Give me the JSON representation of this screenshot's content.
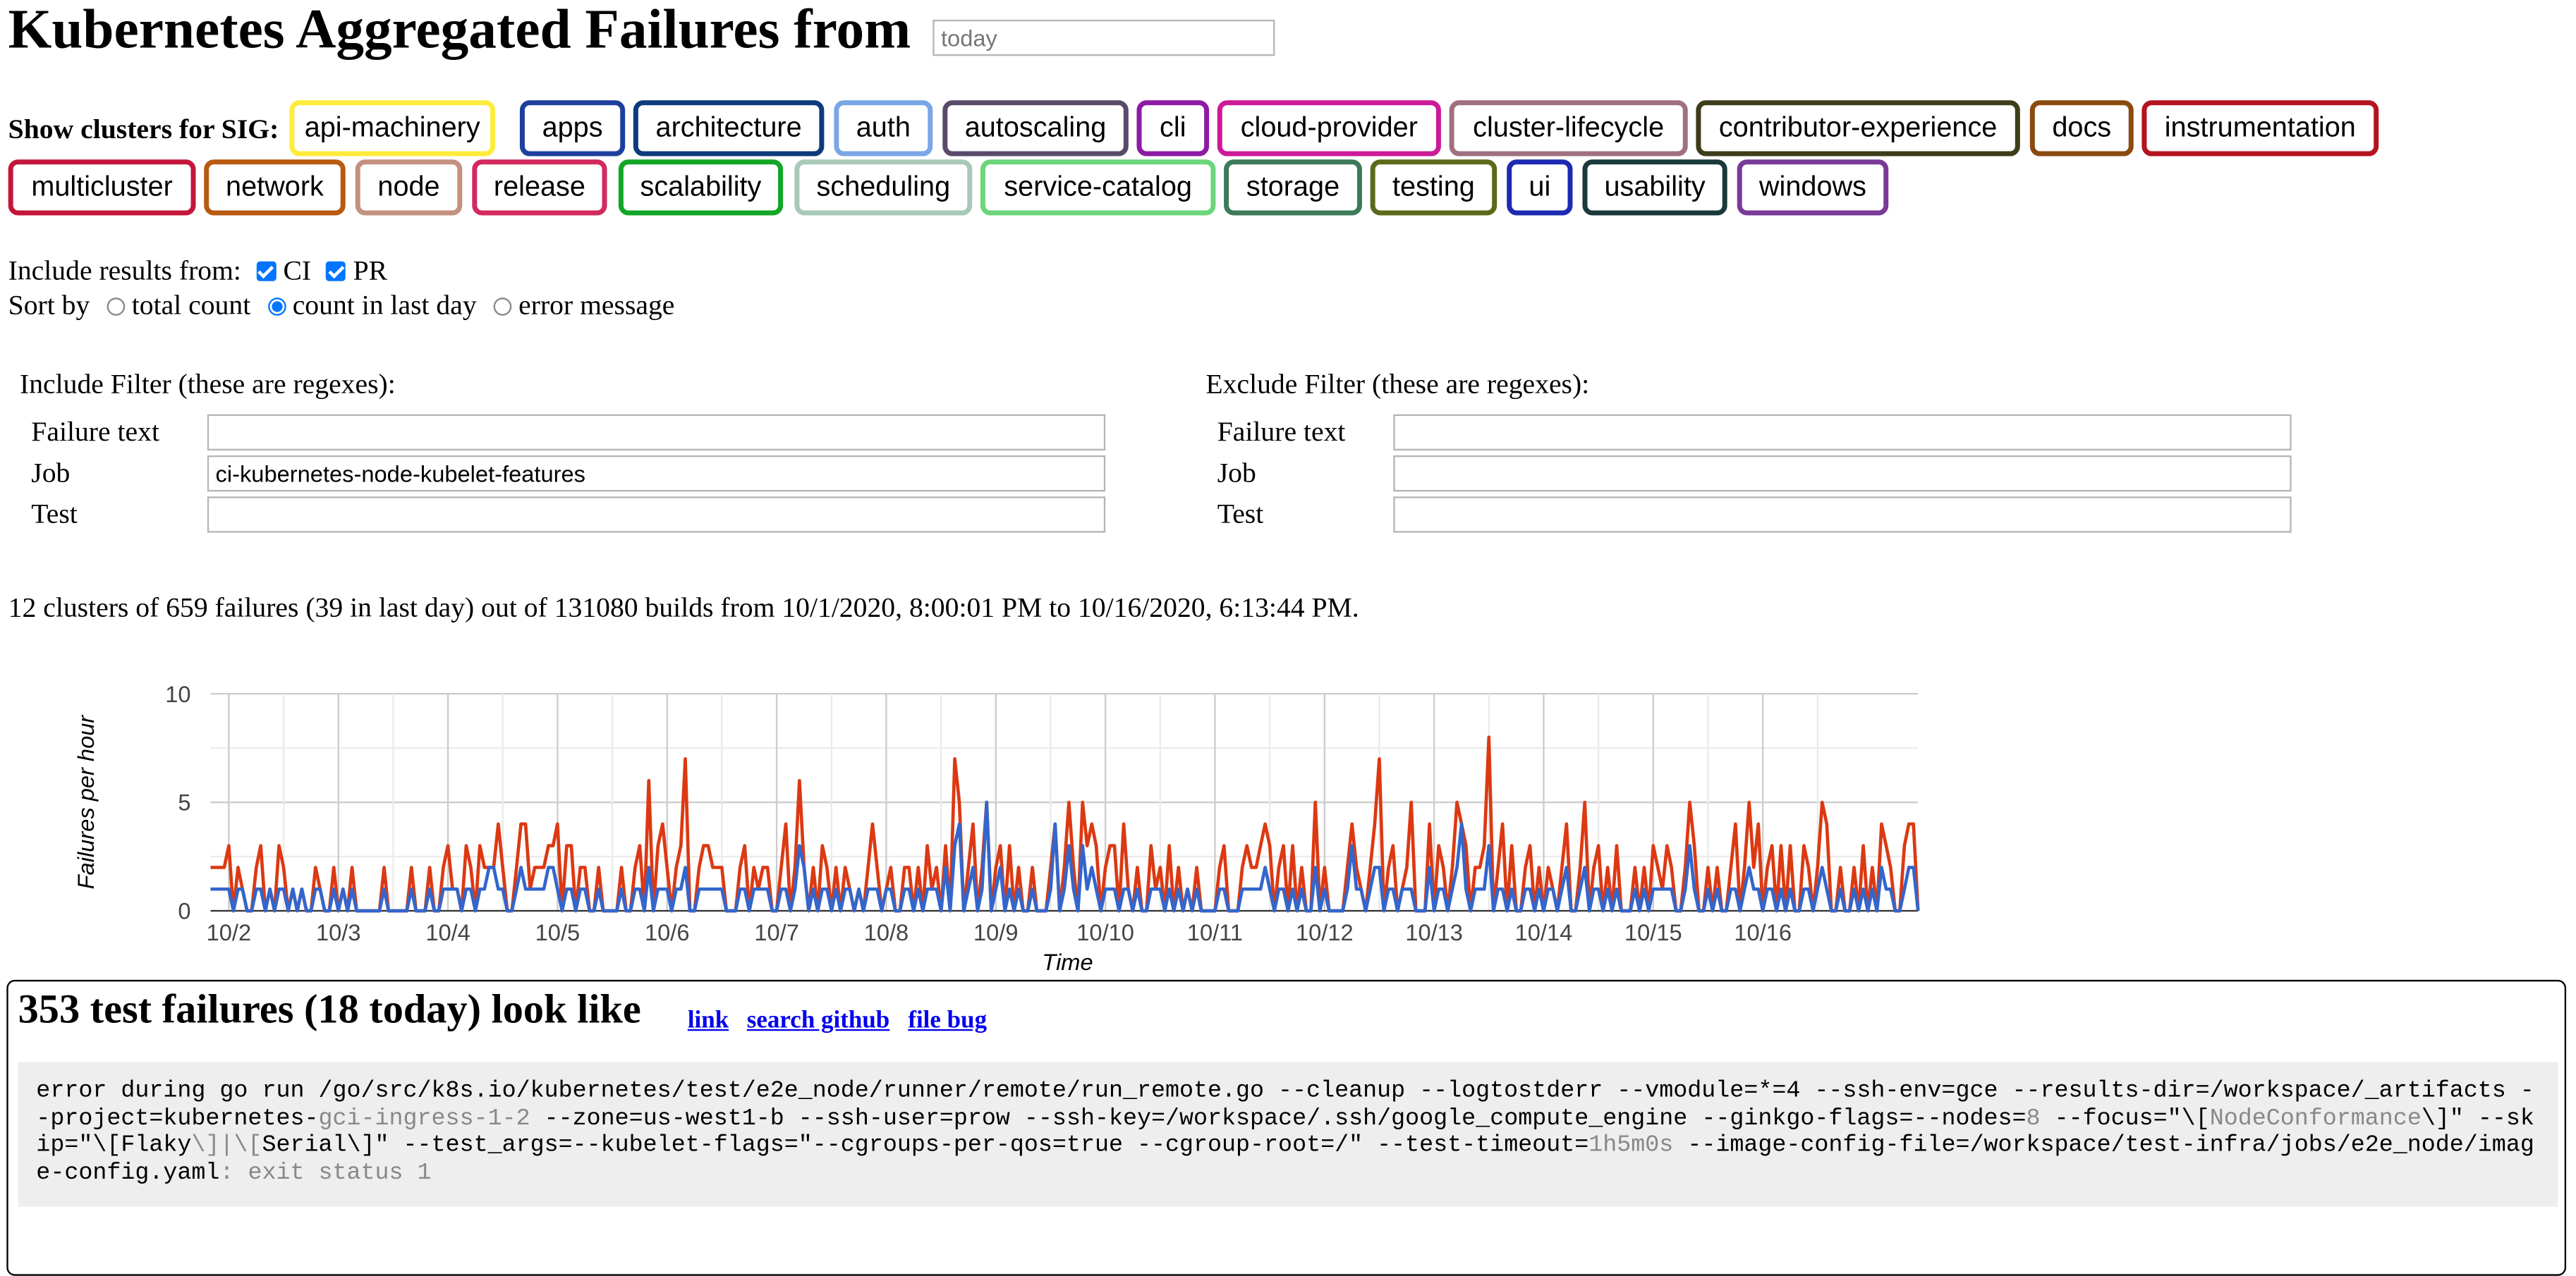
{
  "header": {
    "title": "Kubernetes Aggregated Failures from",
    "date_placeholder": "today"
  },
  "sigs": {
    "label": "Show clusters for SIG:",
    "buttons": [
      {
        "label": "api-machinery",
        "color": "#ffeb3b"
      },
      {
        "label": "apps",
        "color": "#1e3f9e"
      },
      {
        "label": "architecture",
        "color": "#0d3b7a"
      },
      {
        "label": "auth",
        "color": "#7aa6e6"
      },
      {
        "label": "autoscaling",
        "color": "#5a4a6a"
      },
      {
        "label": "cli",
        "color": "#8e1aa6"
      },
      {
        "label": "cloud-provider",
        "color": "#cc1a99"
      },
      {
        "label": "cluster-lifecycle",
        "color": "#a07080"
      },
      {
        "label": "contributor-experience",
        "color": "#3d3d1a"
      },
      {
        "label": "docs",
        "color": "#8a4a10"
      },
      {
        "label": "instrumentation",
        "color": "#b3141e"
      },
      {
        "label": "multicluster",
        "color": "#c4163a"
      },
      {
        "label": "network",
        "color": "#b85a10"
      },
      {
        "label": "node",
        "color": "#c49080"
      },
      {
        "label": "release",
        "color": "#d22a5e"
      },
      {
        "label": "scalability",
        "color": "#12a626"
      },
      {
        "label": "scheduling",
        "color": "#a8c8b8"
      },
      {
        "label": "service-catalog",
        "color": "#6cd67a"
      },
      {
        "label": "storage",
        "color": "#3d7a5a"
      },
      {
        "label": "testing",
        "color": "#5a6a1a"
      },
      {
        "label": "ui",
        "color": "#1e2ab3"
      },
      {
        "label": "usability",
        "color": "#1a3a3a"
      },
      {
        "label": "windows",
        "color": "#7a3a9a"
      }
    ]
  },
  "results": {
    "label": "Include results from:",
    "ci": "CI",
    "pr": "PR"
  },
  "sort": {
    "label": "Sort by",
    "options": [
      "total count",
      "count in last day",
      "error message"
    ],
    "selected": "count in last day"
  },
  "include_filter": {
    "title": "Include Filter (these are regexes):",
    "failure_text_label": "Failure text",
    "failure_text_value": "",
    "job_label": "Job",
    "job_value": "ci-kubernetes-node-kubelet-features",
    "test_label": "Test",
    "test_value": ""
  },
  "exclude_filter": {
    "title": "Exclude Filter (these are regexes):",
    "failure_text_label": "Failure text",
    "failure_text_value": "",
    "job_label": "Job",
    "job_value": "",
    "test_label": "Test",
    "test_value": ""
  },
  "summary": "12 clusters of 659 failures (39 in last day) out of 131080 builds from 10/1/2020, 8:00:01 PM to 10/16/2020, 6:13:44 PM.",
  "chart_data": {
    "type": "line",
    "xlabel": "Time",
    "ylabel": "Failures per hour",
    "ylim": [
      0,
      10
    ],
    "yticks": [
      0,
      5,
      10
    ],
    "xticks": [
      "10/2",
      "10/3",
      "10/4",
      "10/5",
      "10/6",
      "10/7",
      "10/8",
      "10/9",
      "10/10",
      "10/11",
      "10/12",
      "10/13",
      "10/14",
      "10/15",
      "10/16"
    ],
    "x_start": "10/1 20:00",
    "x_step_hours": 1,
    "series": [
      {
        "color": "#dc3912",
        "values": [
          2,
          2,
          2,
          2,
          3,
          0,
          2,
          1,
          0,
          0,
          2,
          3,
          0,
          1,
          0,
          3,
          2,
          0,
          1,
          0,
          1,
          0,
          0,
          2,
          1,
          0,
          0,
          2,
          0,
          1,
          0,
          2,
          0,
          0,
          0,
          0,
          0,
          0,
          2,
          0,
          0,
          0,
          0,
          0,
          2,
          0,
          0,
          0,
          2,
          0,
          0,
          2,
          3,
          1,
          1,
          0,
          3,
          2,
          0,
          3,
          2,
          2,
          2,
          4,
          2,
          0,
          0,
          2,
          4,
          4,
          1,
          2,
          2,
          2,
          3,
          3,
          4,
          0,
          3,
          3,
          0,
          2,
          2,
          0,
          0,
          2,
          0,
          0,
          0,
          0,
          2,
          0,
          0,
          2,
          3,
          0,
          6,
          0,
          3,
          4,
          2,
          0,
          2,
          3,
          7,
          0,
          0,
          2,
          3,
          3,
          2,
          2,
          2,
          0,
          0,
          0,
          2,
          3,
          0,
          2,
          1,
          2,
          2,
          0,
          0,
          2,
          4,
          0,
          2,
          6,
          2,
          0,
          2,
          0,
          3,
          2,
          0,
          2,
          0,
          2,
          1,
          0,
          1,
          0,
          2,
          4,
          2,
          0,
          1,
          2,
          0,
          0,
          2,
          2,
          0,
          2,
          0,
          3,
          1,
          2,
          0,
          3,
          0,
          7,
          5,
          0,
          2,
          4,
          0,
          2,
          5,
          0,
          2,
          3,
          0,
          3,
          0,
          2,
          0,
          0,
          2,
          0,
          0,
          0,
          2,
          4,
          0,
          2,
          5,
          2,
          0,
          5,
          3,
          4,
          3,
          0,
          2,
          3,
          3,
          0,
          4,
          1,
          0,
          2,
          0,
          0,
          3,
          1,
          2,
          0,
          3,
          0,
          2,
          0,
          1,
          0,
          2,
          0,
          0,
          0,
          0,
          2,
          3,
          0,
          0,
          0,
          2,
          3,
          2,
          2,
          3,
          4,
          3,
          0,
          2,
          3,
          0,
          3,
          0,
          2,
          0,
          0,
          5,
          0,
          2,
          0,
          0,
          0,
          0,
          2,
          4,
          2,
          1,
          0,
          2,
          4,
          7,
          0,
          2,
          3,
          0,
          1,
          2,
          5,
          0,
          0,
          0,
          4,
          0,
          3,
          2,
          0,
          2,
          5,
          4,
          3,
          0,
          2,
          2,
          3,
          8,
          0,
          2,
          4,
          0,
          3,
          0,
          0,
          2,
          3,
          0,
          2,
          0,
          2,
          1,
          0,
          2,
          4,
          0,
          0,
          2,
          5,
          0,
          2,
          3,
          0,
          2,
          0,
          3,
          0,
          0,
          0,
          2,
          0,
          2,
          0,
          3,
          2,
          1,
          3,
          2,
          0,
          0,
          2,
          5,
          3,
          0,
          0,
          2,
          0,
          2,
          0,
          0,
          2,
          4,
          0,
          2,
          5,
          2,
          4,
          0,
          2,
          3,
          0,
          3,
          0,
          3,
          0,
          0,
          3,
          2,
          0,
          2,
          5,
          4,
          0,
          0,
          2,
          0,
          0,
          2,
          0,
          3,
          0,
          2,
          0,
          4,
          3,
          2,
          0,
          0,
          3,
          4,
          4,
          0
        ]
      },
      {
        "color": "#3366cc",
        "values": [
          1,
          1,
          1,
          1,
          1,
          0,
          1,
          1,
          0,
          0,
          1,
          1,
          0,
          1,
          0,
          1,
          1,
          0,
          1,
          0,
          1,
          0,
          0,
          1,
          1,
          0,
          0,
          1,
          0,
          1,
          0,
          1,
          0,
          0,
          0,
          0,
          0,
          0,
          1,
          0,
          0,
          0,
          0,
          0,
          1,
          0,
          0,
          0,
          1,
          0,
          0,
          1,
          1,
          1,
          1,
          0,
          1,
          1,
          0,
          1,
          1,
          2,
          2,
          1,
          1,
          0,
          0,
          1,
          2,
          1,
          1,
          1,
          1,
          1,
          2,
          2,
          1,
          0,
          1,
          1,
          0,
          1,
          1,
          0,
          0,
          1,
          0,
          0,
          0,
          0,
          1,
          0,
          0,
          1,
          1,
          0,
          2,
          0,
          1,
          1,
          1,
          0,
          1,
          1,
          2,
          0,
          0,
          1,
          1,
          1,
          1,
          1,
          1,
          0,
          0,
          0,
          1,
          1,
          0,
          1,
          1,
          1,
          1,
          0,
          0,
          1,
          1,
          0,
          1,
          3,
          2,
          0,
          1,
          0,
          1,
          1,
          0,
          1,
          0,
          1,
          1,
          0,
          1,
          0,
          1,
          1,
          1,
          0,
          1,
          1,
          0,
          0,
          1,
          1,
          0,
          1,
          0,
          1,
          1,
          1,
          0,
          2,
          0,
          3,
          4,
          0,
          1,
          2,
          0,
          1,
          5,
          0,
          1,
          2,
          0,
          1,
          0,
          1,
          0,
          0,
          1,
          0,
          0,
          0,
          1,
          4,
          0,
          1,
          3,
          1,
          0,
          3,
          1,
          2,
          1,
          0,
          1,
          1,
          1,
          0,
          1,
          1,
          0,
          1,
          0,
          0,
          1,
          1,
          1,
          0,
          1,
          0,
          1,
          0,
          1,
          0,
          1,
          0,
          0,
          0,
          0,
          1,
          1,
          0,
          0,
          0,
          1,
          1,
          1,
          1,
          1,
          2,
          1,
          0,
          1,
          1,
          0,
          1,
          0,
          1,
          0,
          0,
          2,
          0,
          1,
          0,
          0,
          0,
          0,
          1,
          3,
          1,
          1,
          0,
          1,
          2,
          2,
          0,
          1,
          1,
          0,
          1,
          1,
          1,
          0,
          0,
          0,
          2,
          0,
          1,
          1,
          0,
          1,
          2,
          4,
          1,
          0,
          1,
          1,
          1,
          3,
          0,
          1,
          1,
          0,
          1,
          0,
          0,
          1,
          1,
          0,
          1,
          0,
          1,
          1,
          0,
          1,
          2,
          0,
          0,
          1,
          2,
          0,
          1,
          1,
          0,
          1,
          0,
          1,
          0,
          0,
          0,
          1,
          0,
          1,
          0,
          1,
          1,
          1,
          1,
          1,
          0,
          0,
          1,
          3,
          1,
          0,
          0,
          1,
          0,
          1,
          0,
          0,
          1,
          1,
          0,
          1,
          2,
          1,
          1,
          0,
          1,
          1,
          0,
          1,
          0,
          1,
          0,
          0,
          1,
          1,
          0,
          1,
          2,
          1,
          0,
          0,
          1,
          0,
          0,
          1,
          0,
          1,
          0,
          1,
          0,
          2,
          1,
          1,
          0,
          0,
          1,
          2,
          2,
          0
        ]
      }
    ]
  },
  "cluster": {
    "heading": "353 test failures (18 today) look like",
    "link_label": "link",
    "search_label": "search github",
    "bug_label": "file bug",
    "t1": "error during go run /go/src/k8s.io/kubernetes/test/e2e_node/runner/remote/run_remote.go --cleanup --logtostderr --vmodule=*=4 --ssh-env=gce --results-dir=/workspace/_artifacts --project=kubernetes-",
    "d1": "gci-ingress-1-2",
    "t2": " --zone=us-west1-b --ssh-user=prow --ssh-key=/workspace/.ssh/google_compute_engine --ginkgo-flags=--nodes=",
    "d2": "8",
    "t3": " --focus=\"\\[",
    "d3": "NodeConformance",
    "t4": "\\]\" --skip=\"\\[Flaky",
    "d4": "\\]|\\[",
    "t5": "Serial\\]\" --test_args=--kubelet-flags=\"--cgroups-per-qos=true --cgroup-root=/\" --test-timeout=",
    "d5": "1h5m0s",
    "t6": " --image-config-file=/workspace/test-infra/jobs/e2e_node/image-config.yaml",
    "d6": ": exit status 1"
  }
}
